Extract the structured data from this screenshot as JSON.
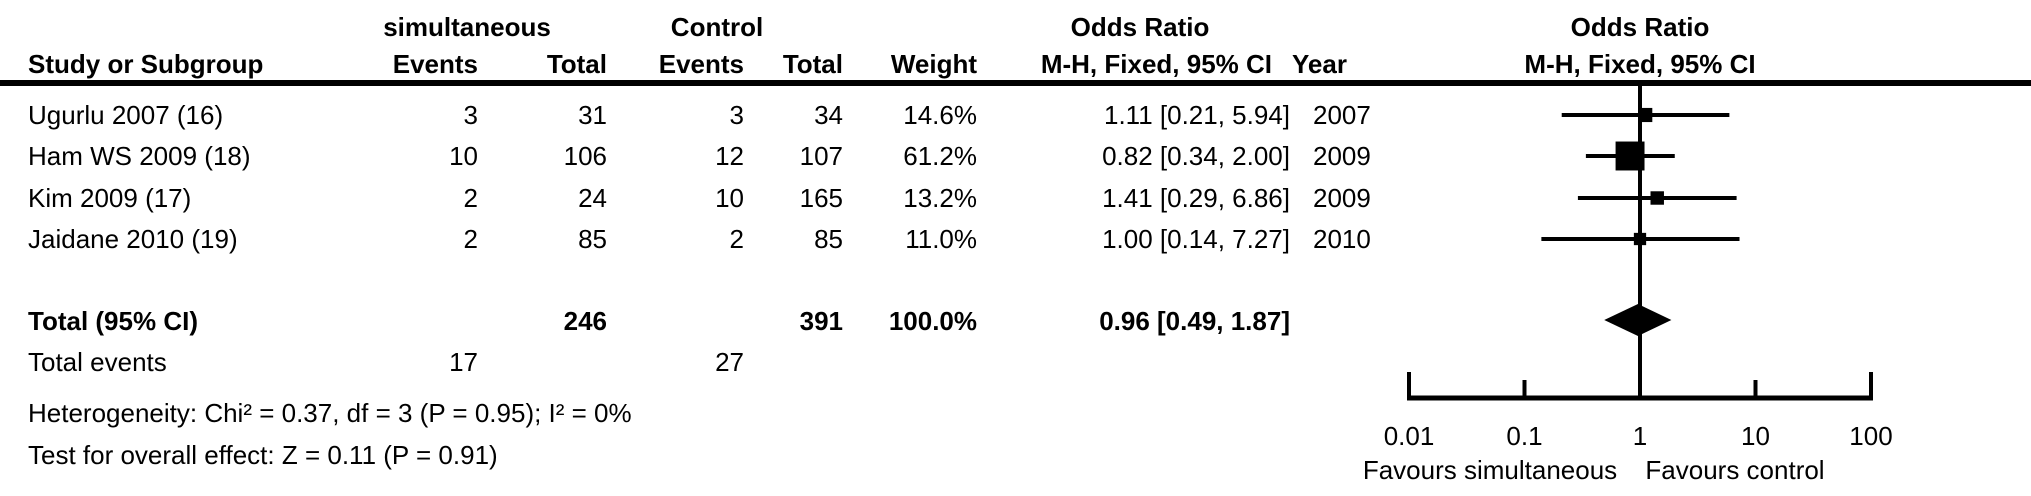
{
  "table": {
    "group_headers": {
      "experimental": "simultaneous",
      "control": "Control",
      "or_left": "Odds Ratio",
      "or_right": "Odds Ratio"
    },
    "col_headers": {
      "study": "Study or Subgroup",
      "exp_events": "Events",
      "exp_total": "Total",
      "ctrl_events": "Events",
      "ctrl_total": "Total",
      "weight": "Weight",
      "mh_left": "M-H, Fixed, 95% CI",
      "year": "Year",
      "mh_right": "M-H, Fixed, 95% CI"
    },
    "studies": [
      {
        "name": "Ugurlu 2007 (16)",
        "sim_events": "3",
        "sim_total": "31",
        "ctrl_events": "3",
        "ctrl_total": "34",
        "weight": "14.6%",
        "or_ci": "1.11 [0.21, 5.94]",
        "year": "2007"
      },
      {
        "name": "Ham WS 2009 (18)",
        "sim_events": "10",
        "sim_total": "106",
        "ctrl_events": "12",
        "ctrl_total": "107",
        "weight": "61.2%",
        "or_ci": "0.82 [0.34, 2.00]",
        "year": "2009"
      },
      {
        "name": "Kim 2009 (17)",
        "sim_events": "2",
        "sim_total": "24",
        "ctrl_events": "10",
        "ctrl_total": "165",
        "weight": "13.2%",
        "or_ci": "1.41 [0.29, 6.86]",
        "year": "2009"
      },
      {
        "name": "Jaidane 2010 (19)",
        "sim_events": "2",
        "sim_total": "85",
        "ctrl_events": "2",
        "ctrl_total": "85",
        "weight": "11.0%",
        "or_ci": "1.00 [0.14, 7.27]",
        "year": "2010"
      }
    ],
    "total_row": {
      "label": "Total (95% CI)",
      "sim_total": "246",
      "ctrl_total": "391",
      "weight": "100.0%",
      "or_ci": "0.96 [0.49, 1.87]"
    },
    "total_events": {
      "label": "Total events",
      "sim": "17",
      "ctrl": "27"
    },
    "heterogeneity": "Heterogeneity: Chi² = 0.37, df = 3 (P = 0.95); I² = 0%",
    "overall_effect": "Test for overall effect: Z = 0.11 (P = 0.91)"
  },
  "chart_data": {
    "type": "forest",
    "effect_measure": "Odds Ratio, M-H, Fixed, 95% CI",
    "x_scale": "log10",
    "x_range": [
      0.01,
      100
    ],
    "null_line": 1,
    "x_ticks": [
      0.01,
      0.1,
      1,
      10,
      100
    ],
    "tick_labels": [
      "0.01",
      "0.1",
      "1",
      "10",
      "100"
    ],
    "favours_left": "Favours simultaneous",
    "favours_right": "Favours control",
    "studies": [
      {
        "label": "Ugurlu 2007 (16)",
        "or": 1.11,
        "ci_low": 0.21,
        "ci_high": 5.94,
        "weight_pct": 14.6,
        "year": 2007
      },
      {
        "label": "Ham WS 2009 (18)",
        "or": 0.82,
        "ci_low": 0.34,
        "ci_high": 2.0,
        "weight_pct": 61.2,
        "year": 2009
      },
      {
        "label": "Kim 2009 (17)",
        "or": 1.41,
        "ci_low": 0.29,
        "ci_high": 6.86,
        "weight_pct": 13.2,
        "year": 2009
      },
      {
        "label": "Jaidane 2010 (19)",
        "or": 1.0,
        "ci_low": 0.14,
        "ci_high": 7.27,
        "weight_pct": 11.0,
        "year": 2010
      }
    ],
    "total": {
      "label": "Total (95% CI)",
      "or": 0.96,
      "ci_low": 0.49,
      "ci_high": 1.87,
      "weight_pct": 100.0
    },
    "heterogeneity": {
      "chi2": 0.37,
      "df": 3,
      "p": 0.95,
      "i2_pct": 0
    },
    "overall_effect": {
      "z": 0.11,
      "p": 0.91
    }
  },
  "colors": {
    "ink": "#000000",
    "background": "#ffffff"
  }
}
